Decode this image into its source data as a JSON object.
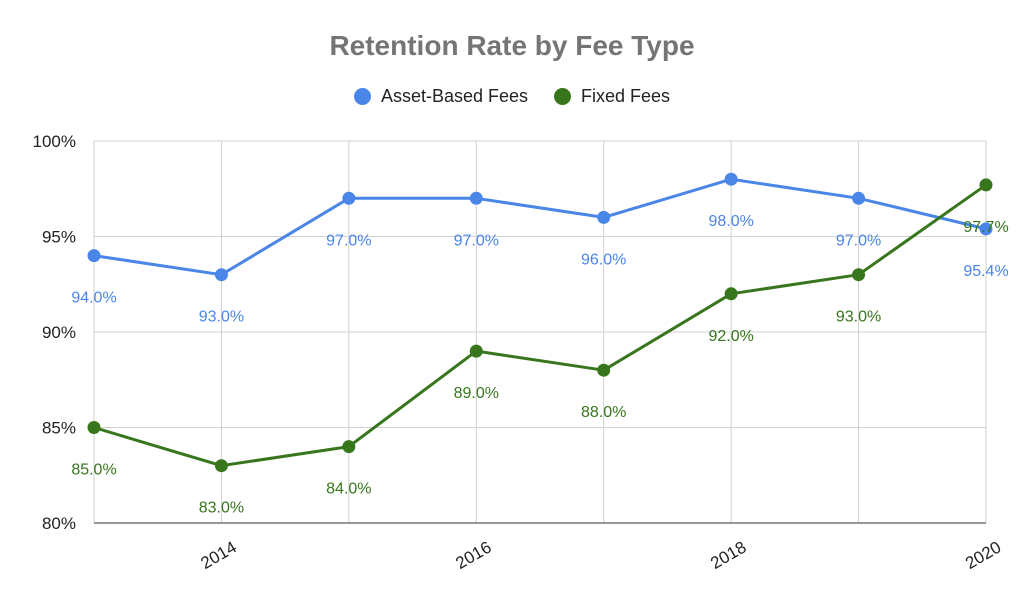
{
  "chart_data": {
    "type": "line",
    "title": "Retention Rate by Fee Type",
    "xlabel": "",
    "ylabel": "",
    "x": [
      2013,
      2014,
      2015,
      2016,
      2017,
      2018,
      2019,
      2020
    ],
    "x_tick_labels": [
      "2014",
      "2016",
      "2018",
      "2020"
    ],
    "x_tick_values": [
      2014,
      2016,
      2018,
      2020
    ],
    "ylim": [
      80,
      100
    ],
    "y_tick_values": [
      80,
      85,
      90,
      95,
      100
    ],
    "y_tick_labels": [
      "80%",
      "85%",
      "90%",
      "95%",
      "100%"
    ],
    "grid": true,
    "legend_placement": "top",
    "series": [
      {
        "name": "Asset-Based Fees",
        "color": "#4a86e8",
        "values": [
          94.0,
          93.0,
          97.0,
          97.0,
          96.0,
          98.0,
          97.0,
          95.4
        ],
        "labels": [
          "94.0%",
          "93.0%",
          "97.0%",
          "97.0%",
          "96.0%",
          "98.0%",
          "97.0%",
          "95.4%"
        ]
      },
      {
        "name": "Fixed Fees",
        "color": "#38761d",
        "values": [
          85.0,
          83.0,
          84.0,
          89.0,
          88.0,
          92.0,
          93.0,
          97.7
        ],
        "labels": [
          "85.0%",
          "83.0%",
          "84.0%",
          "89.0%",
          "88.0%",
          "92.0%",
          "93.0%",
          "97.7%"
        ]
      }
    ]
  }
}
